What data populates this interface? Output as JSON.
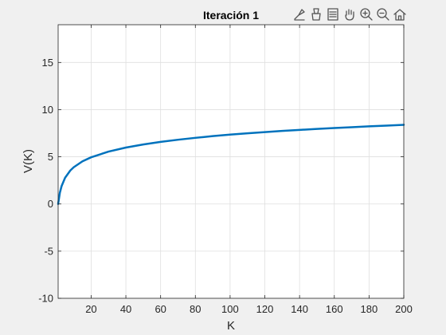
{
  "window": {
    "toolbar": {
      "icons": [
        "brush-icon",
        "data-tips-icon",
        "legend-icon",
        "pan-hand-icon",
        "zoom-in-icon",
        "zoom-out-icon",
        "home-icon"
      ]
    }
  },
  "chart_data": {
    "type": "line",
    "title": "Iteración 1",
    "xlabel": "K",
    "ylabel": "V(K)",
    "xlim": [
      1,
      200
    ],
    "ylim": [
      -10,
      19
    ],
    "xticks": [
      20,
      40,
      60,
      80,
      100,
      120,
      140,
      160,
      180,
      200
    ],
    "yticks": [
      -10,
      -5,
      0,
      5,
      10,
      15
    ],
    "grid": true,
    "line_color": "#0072bd",
    "series": [
      {
        "x": [
          1,
          2,
          3,
          5,
          8,
          10,
          15,
          20,
          30,
          40,
          50,
          60,
          70,
          80,
          90,
          100,
          110,
          120,
          130,
          140,
          150,
          160,
          170,
          180,
          190,
          200
        ],
        "y": [
          0,
          1.2,
          1.9,
          2.78,
          3.55,
          3.9,
          4.52,
          4.95,
          5.55,
          5.98,
          6.31,
          6.58,
          6.81,
          7.01,
          7.19,
          7.35,
          7.49,
          7.62,
          7.74,
          7.85,
          7.96,
          8.05,
          8.14,
          8.23,
          8.31,
          8.39
        ]
      }
    ]
  }
}
